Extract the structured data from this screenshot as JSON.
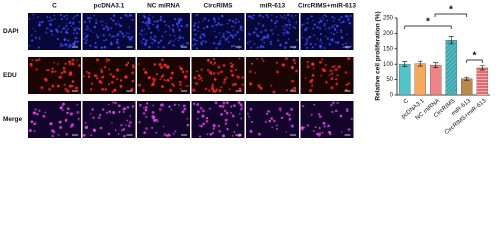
{
  "panels": {
    "columns": [
      "C",
      "pcDNA3.1",
      "NC miRNA",
      "CircRIMS",
      "miR-613",
      "CircRIMS+miR-613"
    ],
    "rows": [
      "DAPI",
      "EDU",
      "Merge"
    ]
  },
  "chart_data": {
    "type": "bar",
    "y_label": "Relative cell proliferation (%)",
    "categories": [
      "C",
      "pcDNA3.1",
      "NC miRNA",
      "CircRIMS",
      "miR-613",
      "CircRIMS+miR-613"
    ],
    "values": [
      100,
      102,
      97,
      178,
      53,
      88
    ],
    "errors": [
      8,
      8,
      8,
      12,
      5,
      7
    ],
    "colors": [
      "#4fc4c9",
      "#f5a95c",
      "#f08383",
      "#3aa8b0",
      "#b98a4e",
      "#e46b6b"
    ],
    "hatch": [
      "none",
      "none",
      "none",
      "diagonal",
      "none",
      "horizontal"
    ],
    "ylim": [
      0,
      250
    ],
    "yticks": [
      0,
      50,
      100,
      150,
      200,
      250
    ],
    "annotations": [
      "*",
      "*",
      "*"
    ]
  }
}
